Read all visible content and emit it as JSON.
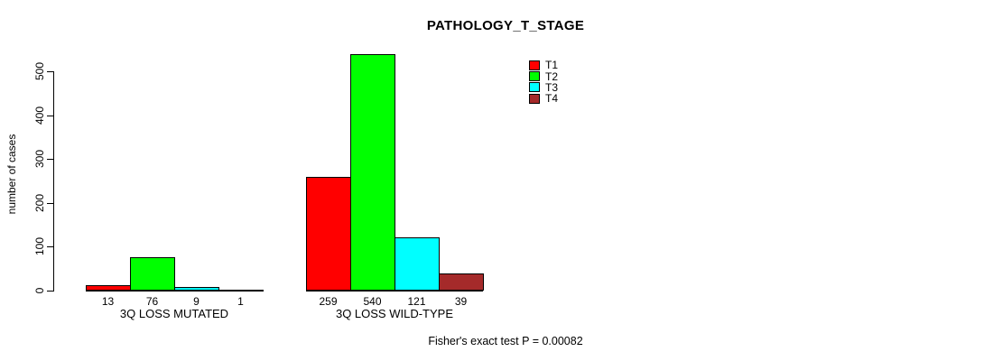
{
  "chart_data": {
    "type": "bar",
    "title": "PATHOLOGY_T_STAGE",
    "ylabel": "number of cases",
    "xlabel": "",
    "ylim": [
      0,
      540
    ],
    "yticks": [
      0,
      100,
      200,
      300,
      400,
      500
    ],
    "grid": false,
    "legend_position": "inside-top-right",
    "categories": [
      "3Q LOSS MUTATED",
      "3Q LOSS WILD-TYPE"
    ],
    "series": [
      {
        "name": "T1",
        "color": "#FF0000",
        "values": [
          13,
          259
        ]
      },
      {
        "name": "T2",
        "color": "#00FF00",
        "values": [
          76,
          540
        ]
      },
      {
        "name": "T3",
        "color": "#00FFFF",
        "values": [
          9,
          121
        ]
      },
      {
        "name": "T4",
        "color": "#A52A2A",
        "values": [
          1,
          39
        ]
      }
    ],
    "bar_value_labels": [
      [
        13,
        76,
        9,
        1
      ],
      [
        259,
        540,
        121,
        39
      ]
    ],
    "annotation": "Fisher's exact test P = 0.00082"
  }
}
